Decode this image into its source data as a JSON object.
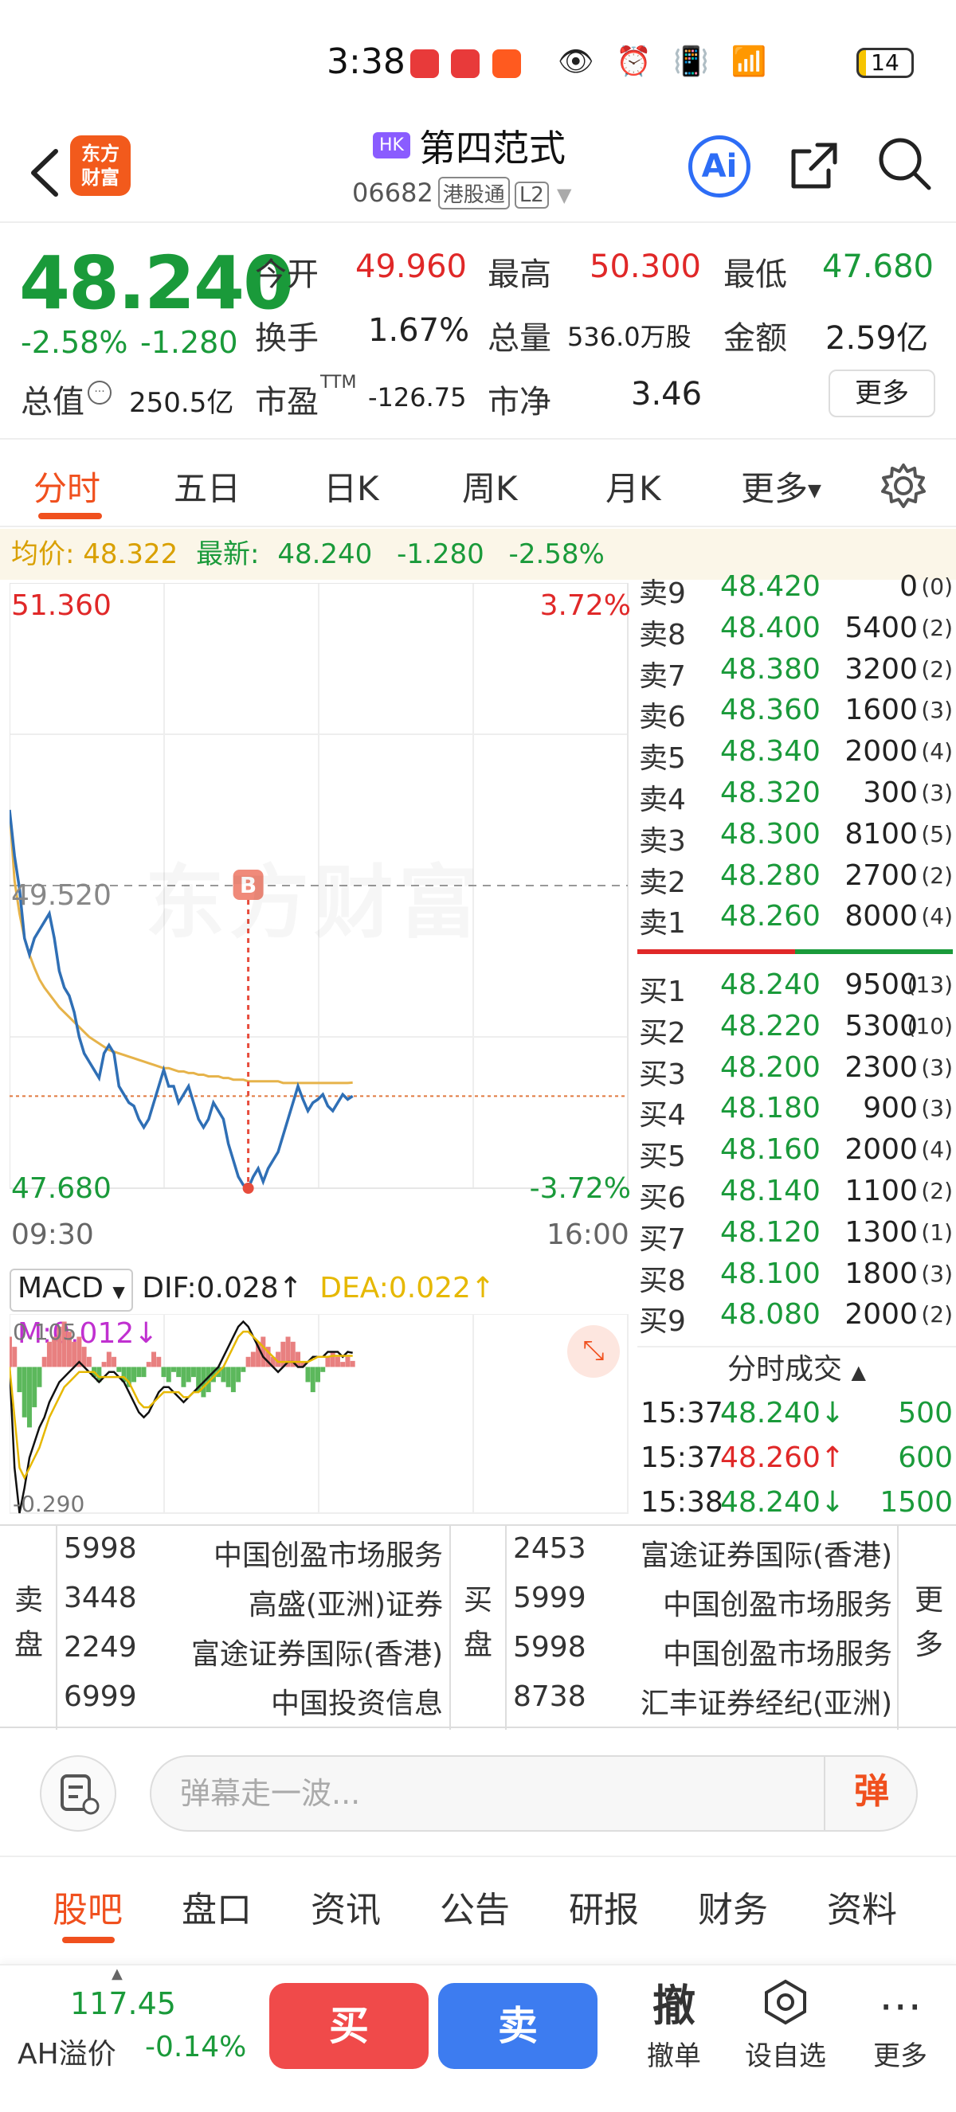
{
  "status": {
    "time": "3:38",
    "battery": "14"
  },
  "header": {
    "logo_line1": "东方",
    "logo_line2": "财富",
    "market_badge": "HK",
    "name": "第四范式",
    "code": "06682",
    "connect_tag": "港股通",
    "level_tag": "L2",
    "ai_label": "Ai"
  },
  "quote": {
    "price": "48.240",
    "change_pct": "-2.58%",
    "change_amt": "-1.280",
    "open_label": "今开",
    "open": "49.960",
    "high_label": "最高",
    "high": "50.300",
    "low_label": "最低",
    "low": "47.680",
    "turnover_label": "换手",
    "turnover": "1.67%",
    "volume_label": "总量",
    "volume": "536.0万股",
    "amount_label": "金额",
    "amount": "2.59亿",
    "mktcap_label": "总值",
    "mktcap": "250.5亿",
    "pe_label": "市盈",
    "pe_sup": "TTM",
    "pe": "-126.75",
    "pb_label": "市净",
    "pb": "3.46",
    "more": "更多"
  },
  "chart_tabs": [
    "分时",
    "五日",
    "日K",
    "周K",
    "月K",
    "更多"
  ],
  "avg_bar": {
    "avg_label": "均价:",
    "avg": "48.322",
    "latest_label": "最新:",
    "latest": "48.240",
    "chg": "-1.280",
    "pct": "-2.58%"
  },
  "chart": {
    "top_price": "51.360",
    "top_pct": "3.72%",
    "mid_price": "49.520",
    "bottom_price": "47.680",
    "bottom_pct": "-3.72%",
    "start_time": "09:30",
    "end_time": "16:00",
    "marker": "B",
    "watermark": "东方财富"
  },
  "macd": {
    "selector": "MACD",
    "dif": "DIF:0.028",
    "dea": "DEA:0.022",
    "m": "M:0.012",
    "top": "0.105",
    "bottom": "-0.290"
  },
  "orderbook": {
    "asks": [
      {
        "label": "卖9",
        "price": "48.420",
        "vol": "0",
        "cnt": "(0)"
      },
      {
        "label": "卖8",
        "price": "48.400",
        "vol": "5400",
        "cnt": "(2)"
      },
      {
        "label": "卖7",
        "price": "48.380",
        "vol": "3200",
        "cnt": "(2)"
      },
      {
        "label": "卖6",
        "price": "48.360",
        "vol": "1600",
        "cnt": "(3)"
      },
      {
        "label": "卖5",
        "price": "48.340",
        "vol": "2000",
        "cnt": "(4)"
      },
      {
        "label": "卖4",
        "price": "48.320",
        "vol": "300",
        "cnt": "(3)"
      },
      {
        "label": "卖3",
        "price": "48.300",
        "vol": "8100",
        "cnt": "(5)"
      },
      {
        "label": "卖2",
        "price": "48.280",
        "vol": "2700",
        "cnt": "(2)"
      },
      {
        "label": "卖1",
        "price": "48.260",
        "vol": "8000",
        "cnt": "(4)"
      }
    ],
    "bids": [
      {
        "label": "买1",
        "price": "48.240",
        "vol": "9500",
        "cnt": "(13)"
      },
      {
        "label": "买2",
        "price": "48.220",
        "vol": "5300",
        "cnt": "(10)"
      },
      {
        "label": "买3",
        "price": "48.200",
        "vol": "2300",
        "cnt": "(3)"
      },
      {
        "label": "买4",
        "price": "48.180",
        "vol": "900",
        "cnt": "(3)"
      },
      {
        "label": "买5",
        "price": "48.160",
        "vol": "2000",
        "cnt": "(4)"
      },
      {
        "label": "买6",
        "price": "48.140",
        "vol": "1100",
        "cnt": "(2)"
      },
      {
        "label": "买7",
        "price": "48.120",
        "vol": "1300",
        "cnt": "(1)"
      },
      {
        "label": "买8",
        "price": "48.100",
        "vol": "1800",
        "cnt": "(3)"
      },
      {
        "label": "买9",
        "price": "48.080",
        "vol": "2000",
        "cnt": "(2)"
      }
    ]
  },
  "trades": {
    "title": "分时成交",
    "rows": [
      {
        "time": "15:37",
        "price": "48.240↓",
        "vol": "500",
        "dir": "down"
      },
      {
        "time": "15:37",
        "price": "48.260↑",
        "vol": "600",
        "dir": "up"
      },
      {
        "time": "15:38",
        "price": "48.240↓",
        "vol": "1500",
        "dir": "down"
      }
    ]
  },
  "brokers": {
    "sell_label": "卖盘",
    "buy_label": "买盘",
    "more": "更多",
    "sell": [
      {
        "id": "5998",
        "name": "中国创盈市场服务"
      },
      {
        "id": "3448",
        "name": "高盛(亚洲)证券"
      },
      {
        "id": "2249",
        "name": "富途证券国际(香港)"
      },
      {
        "id": "6999",
        "name": "中国投资信息"
      }
    ],
    "buy": [
      {
        "id": "2453",
        "name": "富途证券国际(香港)"
      },
      {
        "id": "5999",
        "name": "中国创盈市场服务"
      },
      {
        "id": "5998",
        "name": "中国创盈市场服务"
      },
      {
        "id": "8738",
        "name": "汇丰证券经纪(亚洲)"
      }
    ]
  },
  "comment": {
    "placeholder": "弹幕走一波...",
    "danmu": "弹"
  },
  "info_tabs": [
    "股吧",
    "盘口",
    "资讯",
    "公告",
    "研报",
    "财务",
    "资料"
  ],
  "actionbar": {
    "ah_value": "117.45",
    "ah_label": "AH溢价",
    "ah_pct": "-0.14%",
    "buy": "买",
    "sell": "卖",
    "cancel_icon": "撤",
    "cancel": "撤单",
    "watch": "设自选",
    "more": "更多"
  },
  "chart_data": {
    "type": "line",
    "price_series": [
      49.98,
      49.7,
      49.5,
      49.2,
      49.1,
      49.2,
      49.25,
      49.3,
      49.35,
      49.2,
      49.0,
      48.9,
      48.85,
      48.75,
      48.6,
      48.5,
      48.45,
      48.4,
      48.35,
      48.5,
      48.55,
      48.5,
      48.3,
      48.25,
      48.2,
      48.18,
      48.1,
      48.05,
      48.1,
      48.2,
      48.3,
      48.4,
      48.3,
      48.3,
      48.2,
      48.25,
      48.3,
      48.2,
      48.1,
      48.05,
      48.1,
      48.2,
      48.15,
      48.1,
      47.95,
      47.85,
      47.75,
      47.7,
      47.68,
      47.75,
      47.8,
      47.72,
      47.8,
      47.85,
      47.9,
      48.0,
      48.1,
      48.2,
      48.3,
      48.22,
      48.15,
      48.2,
      48.22,
      48.25,
      48.18,
      48.15,
      48.2,
      48.25,
      48.22,
      48.24
    ],
    "avg_series": [
      49.98,
      49.55,
      49.35,
      49.2,
      49.1,
      49.02,
      48.95,
      48.9,
      48.86,
      48.82,
      48.78,
      48.75,
      48.72,
      48.69,
      48.66,
      48.63,
      48.6,
      48.58,
      48.56,
      48.54,
      48.52,
      48.51,
      48.5,
      48.49,
      48.48,
      48.47,
      48.46,
      48.45,
      48.44,
      48.43,
      48.42,
      48.41,
      48.41,
      48.4,
      48.39,
      48.39,
      48.38,
      48.38,
      48.37,
      48.37,
      48.36,
      48.36,
      48.36,
      48.35,
      48.35,
      48.34,
      48.34,
      48.34,
      48.33,
      48.33,
      48.33,
      48.33,
      48.33,
      48.33,
      48.33,
      48.32,
      48.32,
      48.32,
      48.32,
      48.32,
      48.32,
      48.32,
      48.32,
      48.32,
      48.32,
      48.32,
      48.32,
      48.32,
      48.32,
      48.322
    ],
    "ylim": [
      47.68,
      51.36
    ],
    "prev_close": 49.52,
    "macd_hist": [
      0.06,
      0.04,
      -0.05,
      -0.1,
      -0.12,
      -0.08,
      -0.04,
      0.02,
      0.05,
      0.06,
      0.08,
      0.09,
      0.07,
      0.05,
      0.06,
      0.04,
      0.02,
      -0.02,
      -0.03,
      0.01,
      0.03,
      0.02,
      -0.01,
      -0.03,
      -0.04,
      -0.03,
      -0.02,
      -0.02,
      0.01,
      0.03,
      0.02,
      -0.02,
      -0.03,
      -0.01,
      -0.02,
      -0.04,
      -0.03,
      -0.02,
      -0.05,
      -0.06,
      -0.05,
      -0.03,
      -0.02,
      -0.03,
      -0.04,
      -0.05,
      -0.03,
      -0.01,
      0.02,
      0.03,
      0.05,
      0.06,
      0.04,
      0.02,
      0.03,
      0.05,
      0.06,
      0.05,
      0.03,
      0.01,
      -0.03,
      -0.05,
      -0.03,
      -0.01,
      0.02,
      0.03,
      0.02,
      0.01,
      0.02,
      0.012
    ],
    "dif_series": [
      0.0,
      -0.2,
      -0.29,
      -0.24,
      -0.18,
      -0.15,
      -0.12,
      -0.1,
      -0.07,
      -0.05,
      -0.03,
      -0.02,
      -0.01,
      0.0,
      0.01,
      0.0,
      -0.01,
      -0.02,
      -0.03,
      -0.02,
      -0.01,
      -0.01,
      -0.02,
      -0.03,
      -0.05,
      -0.07,
      -0.09,
      -0.1,
      -0.09,
      -0.07,
      -0.05,
      -0.04,
      -0.04,
      -0.05,
      -0.06,
      -0.07,
      -0.06,
      -0.05,
      -0.04,
      -0.03,
      -0.02,
      -0.01,
      0.0,
      0.02,
      0.04,
      0.06,
      0.08,
      0.09,
      0.08,
      0.06,
      0.04,
      0.02,
      0.01,
      0.0,
      -0.01,
      0.0,
      0.01,
      0.01,
      0.0,
      0.0,
      0.01,
      0.02,
      0.02,
      0.02,
      0.03,
      0.03,
      0.03,
      0.02,
      0.03,
      0.028
    ],
    "dea_series": [
      0.0,
      -0.1,
      -0.2,
      -0.22,
      -0.2,
      -0.18,
      -0.16,
      -0.13,
      -0.1,
      -0.08,
      -0.06,
      -0.04,
      -0.03,
      -0.02,
      -0.01,
      -0.01,
      -0.01,
      -0.01,
      -0.02,
      -0.02,
      -0.02,
      -0.02,
      -0.02,
      -0.02,
      -0.03,
      -0.05,
      -0.07,
      -0.08,
      -0.08,
      -0.07,
      -0.06,
      -0.05,
      -0.05,
      -0.05,
      -0.05,
      -0.06,
      -0.06,
      -0.05,
      -0.05,
      -0.04,
      -0.03,
      -0.02,
      -0.01,
      0.0,
      0.02,
      0.04,
      0.06,
      0.07,
      0.07,
      0.06,
      0.05,
      0.04,
      0.03,
      0.02,
      0.01,
      0.01,
      0.01,
      0.01,
      0.01,
      0.01,
      0.01,
      0.015,
      0.02,
      0.02,
      0.02,
      0.022,
      0.022,
      0.022,
      0.022,
      0.022
    ],
    "macd_ylim": [
      -0.29,
      0.105
    ]
  }
}
